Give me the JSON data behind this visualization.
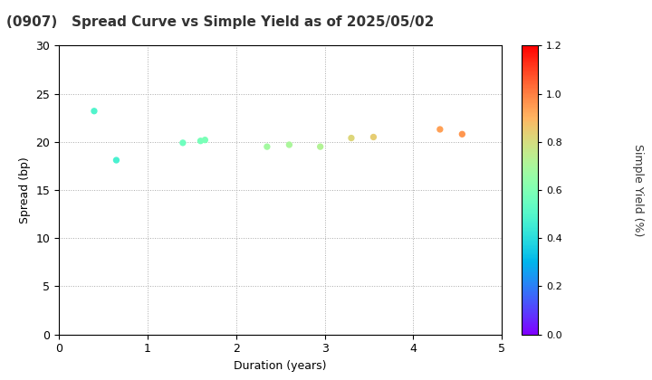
{
  "title": "(0907)   Spread Curve vs Simple Yield as of 2025/05/02",
  "xlabel": "Duration (years)",
  "ylabel": "Spread (bp)",
  "colorbar_label": "Simple Yield (%)",
  "xlim": [
    0,
    5
  ],
  "ylim": [
    0,
    30
  ],
  "xticks": [
    0,
    1,
    2,
    3,
    4,
    5
  ],
  "yticks": [
    0,
    5,
    10,
    15,
    20,
    25,
    30
  ],
  "colorbar_min": 0.0,
  "colorbar_max": 1.2,
  "colorbar_ticks": [
    0.0,
    0.2,
    0.4,
    0.6,
    0.8,
    1.0,
    1.2
  ],
  "points": [
    {
      "duration": 0.4,
      "spread": 23.2,
      "simple_yield": 0.49
    },
    {
      "duration": 0.65,
      "spread": 18.1,
      "simple_yield": 0.47
    },
    {
      "duration": 1.4,
      "spread": 19.9,
      "simple_yield": 0.56
    },
    {
      "duration": 1.6,
      "spread": 20.1,
      "simple_yield": 0.58
    },
    {
      "duration": 1.65,
      "spread": 20.2,
      "simple_yield": 0.59
    },
    {
      "duration": 2.35,
      "spread": 19.5,
      "simple_yield": 0.68
    },
    {
      "duration": 2.6,
      "spread": 19.7,
      "simple_yield": 0.7
    },
    {
      "duration": 2.95,
      "spread": 19.5,
      "simple_yield": 0.72
    },
    {
      "duration": 3.3,
      "spread": 20.4,
      "simple_yield": 0.82
    },
    {
      "duration": 3.55,
      "spread": 20.5,
      "simple_yield": 0.84
    },
    {
      "duration": 4.3,
      "spread": 21.3,
      "simple_yield": 0.94
    },
    {
      "duration": 4.55,
      "spread": 20.8,
      "simple_yield": 0.96
    }
  ],
  "background_color": "#ffffff",
  "grid_color": "#aaaaaa",
  "marker_size": 18,
  "colormap": "rainbow",
  "title_fontsize": 11,
  "axis_label_fontsize": 9,
  "tick_fontsize": 9,
  "colorbar_label_fontsize": 9,
  "colorbar_tick_fontsize": 8
}
